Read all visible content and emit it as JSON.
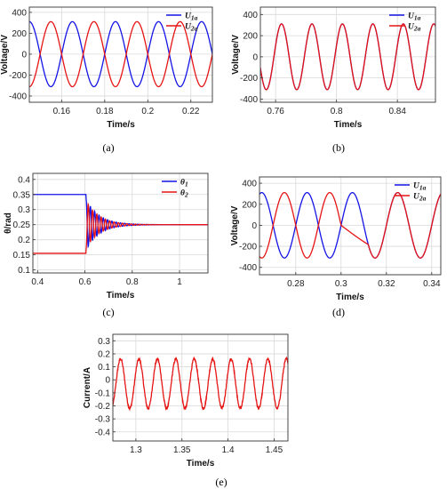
{
  "chart_data": [
    {
      "id": "a",
      "caption": "(a)",
      "type": "line",
      "xlabel": "Time/s",
      "ylabel": "Voltage/V",
      "xlim": [
        0.145,
        0.23
      ],
      "ylim": [
        -460,
        450
      ],
      "xticks": [
        0.16,
        0.18,
        0.2,
        0.22
      ],
      "xtick_labels": [
        "0.16",
        "0.18",
        "0.2",
        "0.22"
      ],
      "yticks": [
        -400,
        -200,
        0,
        200,
        400
      ],
      "ytick_labels": [
        "-400",
        "-200",
        "0",
        "200",
        "400"
      ],
      "grid": true,
      "legend_position": "top-right",
      "series": [
        {
          "name": "U1a",
          "name_main": "U",
          "name_sub": "1a",
          "color": "#1414e6",
          "kind": "sine",
          "amp": 311,
          "freq": 50,
          "phase_deg": 0,
          "x_start": 0.145,
          "x_end": 0.23
        },
        {
          "name": "U2a",
          "name_main": "U",
          "name_sub": "2a",
          "color": "#e61414",
          "kind": "sine",
          "amp": 311,
          "freq": 50,
          "phase_deg": 180,
          "x_start": 0.145,
          "x_end": 0.23
        }
      ]
    },
    {
      "id": "b",
      "caption": "(b)",
      "type": "line",
      "xlabel": "Time/s",
      "ylabel": "Voltage/V",
      "xlim": [
        0.75,
        0.865
      ],
      "ylim": [
        -430,
        470
      ],
      "xticks": [
        0.76,
        0.8,
        0.84
      ],
      "xtick_labels": [
        "0.76",
        "0.8",
        "0.84"
      ],
      "yticks": [
        -400,
        -200,
        0,
        200,
        400
      ],
      "ytick_labels": [
        "-400",
        "-200",
        "0",
        "200",
        "400"
      ],
      "grid": true,
      "legend_position": "top-right",
      "series": [
        {
          "name": "U1a",
          "name_main": "U",
          "name_sub": "1a",
          "color": "#1414e6",
          "kind": "sine",
          "amp": 311,
          "freq": 50,
          "phase_deg": 20,
          "x_start": 0.75,
          "x_end": 0.865
        },
        {
          "name": "U2a",
          "name_main": "U",
          "name_sub": "2a",
          "color": "#e61414",
          "kind": "sine",
          "amp": 311,
          "freq": 50,
          "phase_deg": 20,
          "x_start": 0.75,
          "x_end": 0.865
        }
      ]
    },
    {
      "id": "c",
      "caption": "(c)",
      "type": "line",
      "xlabel": "Time/s",
      "ylabel": "θ/rad",
      "xlim": [
        0.38,
        1.12
      ],
      "ylim": [
        0.09,
        0.42
      ],
      "xticks": [
        0.4,
        0.6,
        0.8,
        1
      ],
      "xtick_labels": [
        "0.4",
        "0.6",
        "0.8",
        "1"
      ],
      "yticks": [
        0.1,
        0.15,
        0.2,
        0.25,
        0.3,
        0.35,
        0.4
      ],
      "ytick_labels": [
        "0.1",
        "0.15",
        "0.2",
        "0.25",
        "0.3",
        "0.35",
        "0.4"
      ],
      "grid": true,
      "legend_position": "top-right",
      "series": [
        {
          "name": "θ1",
          "name_main": "θ",
          "name_sub": "1",
          "color": "#1414e6",
          "kind": "step",
          "before": 0.35,
          "after": 0.25,
          "t_step": 0.605,
          "osc_amp": 0.085,
          "osc_freq": 55,
          "decay": 18,
          "x_start": 0.38,
          "x_end": 1.12
        },
        {
          "name": "θ2",
          "name_main": "θ",
          "name_sub": "2",
          "color": "#e61414",
          "kind": "step",
          "before": 0.155,
          "after": 0.25,
          "t_step": 0.605,
          "osc_amp": -0.08,
          "osc_freq": 55,
          "decay": 18,
          "x_start": 0.38,
          "x_end": 1.12
        }
      ]
    },
    {
      "id": "d",
      "caption": "(d)",
      "type": "line",
      "xlabel": "Time/s",
      "ylabel": "Voltage/V",
      "xlim": [
        0.264,
        0.344
      ],
      "ylim": [
        -470,
        460
      ],
      "xticks": [
        0.28,
        0.3,
        0.32,
        0.34
      ],
      "xtick_labels": [
        "0.28",
        "0.3",
        "0.32",
        "0.34"
      ],
      "yticks": [
        -400,
        -200,
        0,
        200,
        400
      ],
      "ytick_labels": [
        "-400",
        "-200",
        "0",
        "200",
        "400"
      ],
      "grid": true,
      "legend_position": "top-right",
      "series": [
        {
          "name": "U1a",
          "name_main": "U",
          "name_sub": "1a",
          "color": "#1414e6",
          "kind": "sine",
          "amp": 311,
          "freq": 50,
          "phase_deg": 0,
          "x_start": 0.264,
          "x_end": 0.344
        },
        {
          "name": "U2a",
          "name_main": "U",
          "name_sub": "2a",
          "color": "#e61414",
          "kind": "sync",
          "amp": 311,
          "freq": 50,
          "phase_deg": 180,
          "phase_after_deg": 0,
          "t_sync": 0.3,
          "settle": 0.012,
          "x_start": 0.264,
          "x_end": 0.344
        }
      ]
    },
    {
      "id": "e",
      "caption": "(e)",
      "type": "line",
      "xlabel": "Time/s",
      "ylabel": "Current/A",
      "xlim": [
        1.275,
        1.465
      ],
      "ylim": [
        -0.47,
        0.35
      ],
      "xticks": [
        1.3,
        1.35,
        1.4,
        1.45
      ],
      "xtick_labels": [
        "1.3",
        "1.35",
        "1.4",
        "1.45"
      ],
      "yticks": [
        -0.4,
        -0.3,
        -0.2,
        -0.1,
        0,
        0.1,
        0.2,
        0.3
      ],
      "ytick_labels": [
        "-0.4",
        "-0.3",
        "-0.2",
        "-0.1",
        "0",
        "0.1",
        "0.2",
        "0.3"
      ],
      "grid": true,
      "legend_position": "none",
      "series": [
        {
          "color": "#e61414",
          "kind": "noisy_sine",
          "amp": 0.19,
          "offset": -0.03,
          "freq": 50,
          "phase_deg": 30,
          "x_start": 1.275,
          "x_end": 1.465
        }
      ]
    }
  ]
}
